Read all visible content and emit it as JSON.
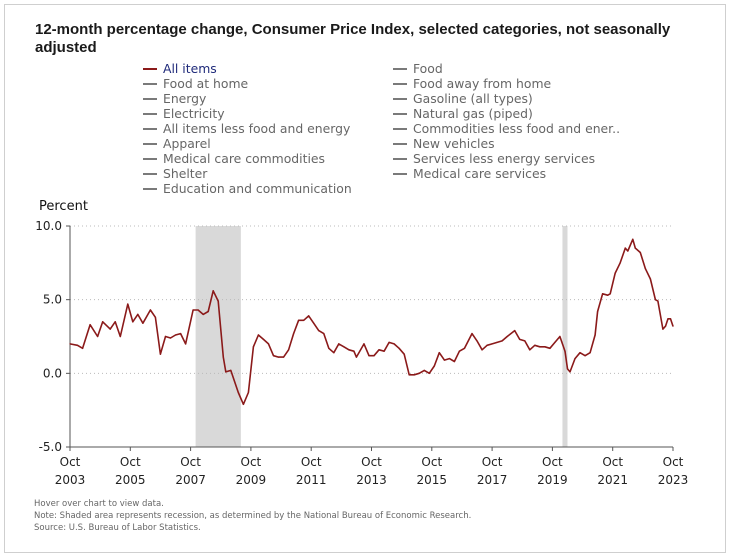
{
  "title": "12-month percentage change, Consumer Price Index, selected categories, not seasonally adjusted",
  "legend": {
    "left": [
      "All items",
      "Food at home",
      "Energy",
      "Electricity",
      "All items less food and energy",
      "Apparel",
      "Medical care commodities",
      "Shelter",
      "Education and communication"
    ],
    "right": [
      "Food",
      "Food away from home",
      "Gasoline (all types)",
      "Natural gas (piped)",
      "Commodities less food and ener..",
      "New vehicles",
      "Services less energy services",
      "Medical care services"
    ],
    "active": "All items"
  },
  "notes": [
    "Hover over chart to view data.",
    "Note: Shaded area represents recession, as determined by the National Bureau of Economic Research.",
    "Source: U.S. Bureau of Labor Statistics."
  ],
  "colors": {
    "series": "#8b1a1a",
    "recession": "#d9d9d9",
    "grid": "#bbbbbb",
    "axis": "#555555"
  },
  "chart_data": {
    "type": "line",
    "title": "12-month percentage change, Consumer Price Index, selected categories, not seasonally adjusted",
    "ylabel": "Percent",
    "xlabel": "",
    "ylim": [
      -5.0,
      10.0
    ],
    "xlim": [
      "2003-10",
      "2023-10"
    ],
    "yticks": [
      "10.0",
      "5.0",
      "0.0",
      "-5.0"
    ],
    "yticks_values": [
      10,
      5,
      0,
      -5
    ],
    "xticks": [
      {
        "date": "2003-10",
        "line1": "Oct",
        "line2": "2003"
      },
      {
        "date": "2005-10",
        "line1": "Oct",
        "line2": "2005"
      },
      {
        "date": "2007-10",
        "line1": "Oct",
        "line2": "2007"
      },
      {
        "date": "2009-10",
        "line1": "Oct",
        "line2": "2009"
      },
      {
        "date": "2011-10",
        "line1": "Oct",
        "line2": "2011"
      },
      {
        "date": "2013-10",
        "line1": "Oct",
        "line2": "2013"
      },
      {
        "date": "2015-10",
        "line1": "Oct",
        "line2": "2015"
      },
      {
        "date": "2017-10",
        "line1": "Oct",
        "line2": "2017"
      },
      {
        "date": "2019-10",
        "line1": "Oct",
        "line2": "2019"
      },
      {
        "date": "2021-10",
        "line1": "Oct",
        "line2": "2021"
      },
      {
        "date": "2023-10",
        "line1": "Oct",
        "line2": "2023"
      }
    ],
    "grid": "horizontal dotted",
    "recessions": [
      {
        "start": "2007-12",
        "end": "2009-06"
      },
      {
        "start": "2020-02",
        "end": "2020-04"
      }
    ],
    "series": [
      {
        "name": "All items",
        "points": [
          [
            "2003-10",
            2.0
          ],
          [
            "2004-01",
            1.9
          ],
          [
            "2004-03",
            1.7
          ],
          [
            "2004-06",
            3.3
          ],
          [
            "2004-09",
            2.5
          ],
          [
            "2004-11",
            3.5
          ],
          [
            "2005-02",
            3.0
          ],
          [
            "2005-04",
            3.5
          ],
          [
            "2005-06",
            2.5
          ],
          [
            "2005-09",
            4.7
          ],
          [
            "2005-11",
            3.5
          ],
          [
            "2006-01",
            4.0
          ],
          [
            "2006-03",
            3.4
          ],
          [
            "2006-06",
            4.3
          ],
          [
            "2006-08",
            3.8
          ],
          [
            "2006-10",
            1.3
          ],
          [
            "2006-12",
            2.5
          ],
          [
            "2007-02",
            2.4
          ],
          [
            "2007-04",
            2.6
          ],
          [
            "2007-06",
            2.7
          ],
          [
            "2007-08",
            2.0
          ],
          [
            "2007-11",
            4.3
          ],
          [
            "2008-01",
            4.3
          ],
          [
            "2008-03",
            4.0
          ],
          [
            "2008-05",
            4.2
          ],
          [
            "2008-07",
            5.6
          ],
          [
            "2008-09",
            4.9
          ],
          [
            "2008-11",
            1.1
          ],
          [
            "2008-12",
            0.1
          ],
          [
            "2009-02",
            0.2
          ],
          [
            "2009-05",
            -1.3
          ],
          [
            "2009-07",
            -2.1
          ],
          [
            "2009-09",
            -1.3
          ],
          [
            "2009-11",
            1.8
          ],
          [
            "2010-01",
            2.6
          ],
          [
            "2010-03",
            2.3
          ],
          [
            "2010-05",
            2.0
          ],
          [
            "2010-07",
            1.2
          ],
          [
            "2010-09",
            1.1
          ],
          [
            "2010-11",
            1.1
          ],
          [
            "2011-01",
            1.6
          ],
          [
            "2011-03",
            2.7
          ],
          [
            "2011-05",
            3.6
          ],
          [
            "2011-07",
            3.6
          ],
          [
            "2011-09",
            3.9
          ],
          [
            "2011-11",
            3.4
          ],
          [
            "2012-01",
            2.9
          ],
          [
            "2012-03",
            2.7
          ],
          [
            "2012-05",
            1.7
          ],
          [
            "2012-07",
            1.4
          ],
          [
            "2012-09",
            2.0
          ],
          [
            "2012-11",
            1.8
          ],
          [
            "2013-01",
            1.6
          ],
          [
            "2013-03",
            1.5
          ],
          [
            "2013-04",
            1.1
          ],
          [
            "2013-07",
            2.0
          ],
          [
            "2013-09",
            1.2
          ],
          [
            "2013-11",
            1.2
          ],
          [
            "2014-01",
            1.6
          ],
          [
            "2014-03",
            1.5
          ],
          [
            "2014-05",
            2.1
          ],
          [
            "2014-07",
            2.0
          ],
          [
            "2014-09",
            1.7
          ],
          [
            "2014-11",
            1.3
          ],
          [
            "2015-01",
            -0.1
          ],
          [
            "2015-03",
            -0.1
          ],
          [
            "2015-05",
            0.0
          ],
          [
            "2015-07",
            0.2
          ],
          [
            "2015-09",
            0.0
          ],
          [
            "2015-11",
            0.5
          ],
          [
            "2016-01",
            1.4
          ],
          [
            "2016-03",
            0.9
          ],
          [
            "2016-05",
            1.0
          ],
          [
            "2016-07",
            0.8
          ],
          [
            "2016-09",
            1.5
          ],
          [
            "2016-11",
            1.7
          ],
          [
            "2017-02",
            2.7
          ],
          [
            "2017-04",
            2.2
          ],
          [
            "2017-06",
            1.6
          ],
          [
            "2017-08",
            1.9
          ],
          [
            "2017-10",
            2.0
          ],
          [
            "2017-12",
            2.1
          ],
          [
            "2018-02",
            2.2
          ],
          [
            "2018-04",
            2.5
          ],
          [
            "2018-07",
            2.9
          ],
          [
            "2018-09",
            2.3
          ],
          [
            "2018-11",
            2.2
          ],
          [
            "2019-01",
            1.6
          ],
          [
            "2019-03",
            1.9
          ],
          [
            "2019-05",
            1.8
          ],
          [
            "2019-07",
            1.8
          ],
          [
            "2019-09",
            1.7
          ],
          [
            "2019-11",
            2.1
          ],
          [
            "2020-01",
            2.5
          ],
          [
            "2020-03",
            1.5
          ],
          [
            "2020-04",
            0.3
          ],
          [
            "2020-05",
            0.1
          ],
          [
            "2020-07",
            1.0
          ],
          [
            "2020-09",
            1.4
          ],
          [
            "2020-11",
            1.2
          ],
          [
            "2021-01",
            1.4
          ],
          [
            "2021-03",
            2.6
          ],
          [
            "2021-04",
            4.2
          ],
          [
            "2021-06",
            5.4
          ],
          [
            "2021-08",
            5.3
          ],
          [
            "2021-09",
            5.4
          ],
          [
            "2021-11",
            6.8
          ],
          [
            "2022-01",
            7.5
          ],
          [
            "2022-03",
            8.5
          ],
          [
            "2022-04",
            8.3
          ],
          [
            "2022-06",
            9.1
          ],
          [
            "2022-07",
            8.5
          ],
          [
            "2022-09",
            8.2
          ],
          [
            "2022-11",
            7.1
          ],
          [
            "2023-01",
            6.4
          ],
          [
            "2023-03",
            5.0
          ],
          [
            "2023-04",
            4.9
          ],
          [
            "2023-06",
            3.0
          ],
          [
            "2023-07",
            3.2
          ],
          [
            "2023-08",
            3.7
          ],
          [
            "2023-09",
            3.7
          ],
          [
            "2023-10",
            3.2
          ]
        ]
      }
    ]
  }
}
